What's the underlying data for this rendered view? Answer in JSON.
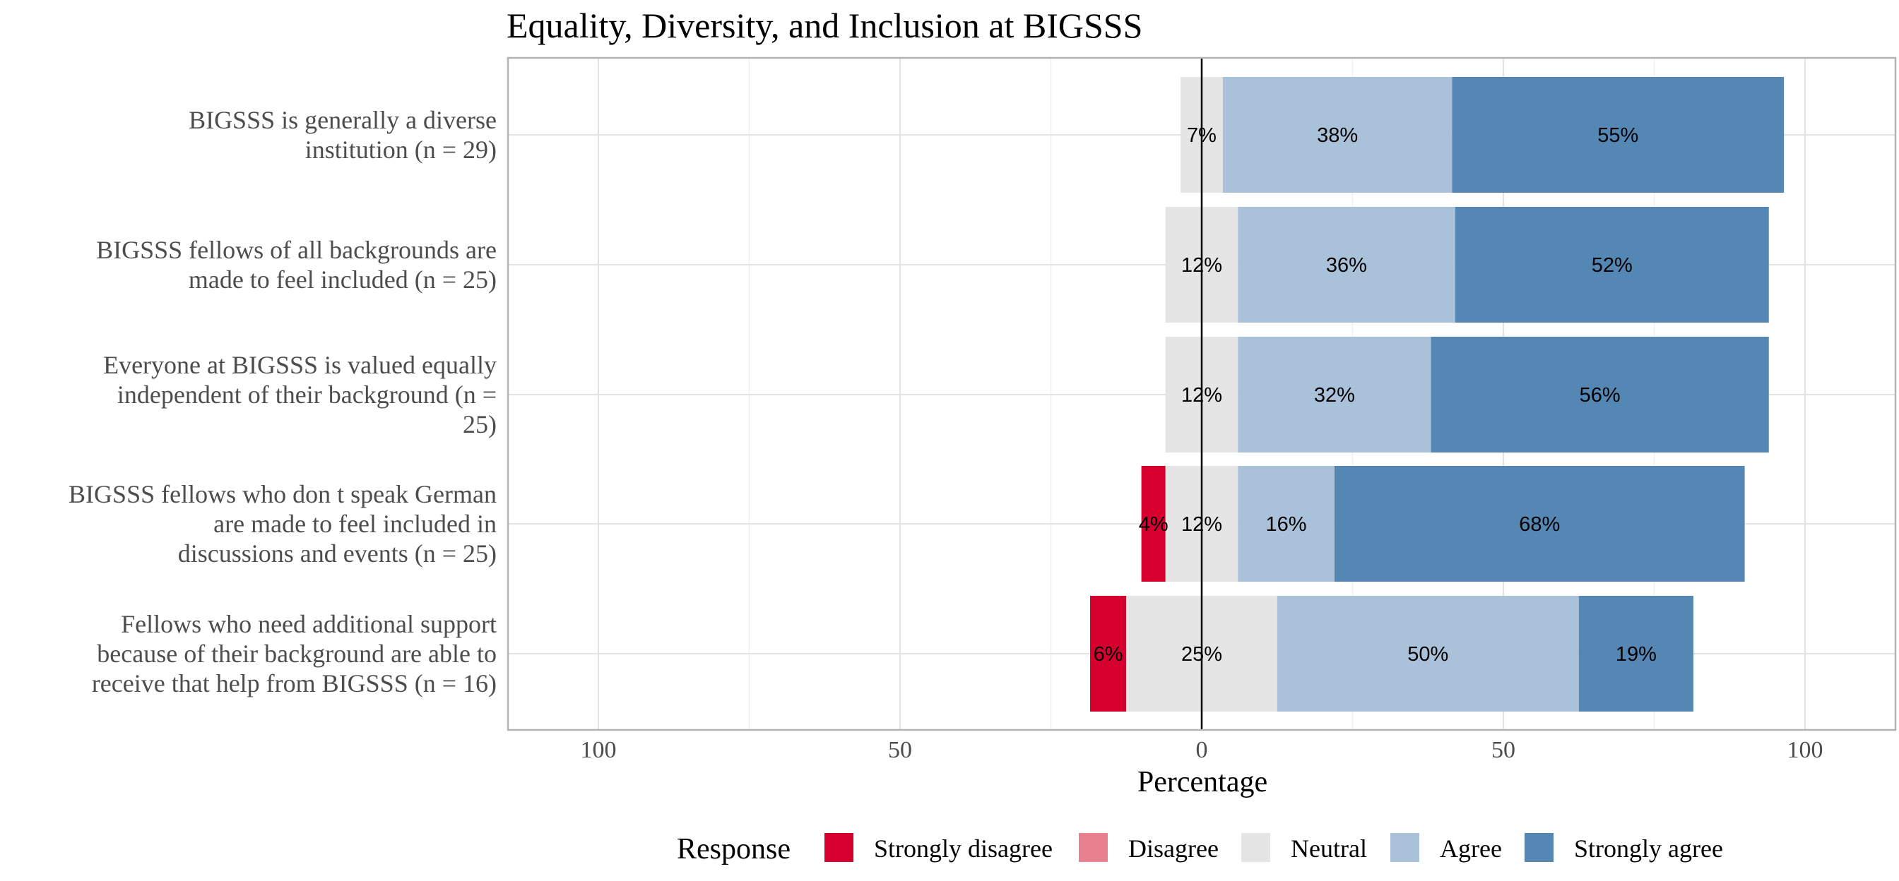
{
  "chart_data": {
    "type": "bar",
    "orientation": "horizontal",
    "stacked": "diverging",
    "title": "Equality, Diversity, and Inclusion at BIGSSS",
    "xlabel": "Percentage",
    "ylabel": "",
    "xlim": [
      -115,
      115
    ],
    "x_ticks": [
      -100,
      -50,
      0,
      50,
      100
    ],
    "x_tick_labels": [
      "100",
      "50",
      "0",
      "50",
      "100"
    ],
    "grid": true,
    "legend_position": "bottom",
    "legend_title": "Response",
    "categories": [
      "BIGSSS is generally a diverse institution (n = 29)",
      "BIGSSS fellows of all backgrounds are made to feel included (n = 25)",
      "Everyone at BIGSSS is valued equally independent of their background (n = 25)",
      "BIGSSS fellows who don t speak German are made to feel included in discussions and events (n = 25)",
      "Fellows who need additional support because of their background are able to receive that help from BIGSSS (n = 16)"
    ],
    "category_label_lines": [
      [
        "BIGSSS is generally a diverse",
        "institution (n = 29)"
      ],
      [
        "BIGSSS fellows of all backgrounds are",
        "made to feel included (n = 25)"
      ],
      [
        "Everyone at BIGSSS is valued equally",
        "independent of their background (n =",
        "25)"
      ],
      [
        "BIGSSS fellows who don t speak German",
        "are made to feel included in",
        "discussions and events (n = 25)"
      ],
      [
        "Fellows who need additional support",
        "because of their background are able to",
        "receive that help from BIGSSS (n = 16)"
      ]
    ],
    "series": [
      {
        "name": "Strongly disagree",
        "color": "#D6002F",
        "values": [
          0,
          0,
          0,
          4,
          6
        ]
      },
      {
        "name": "Disagree",
        "color": "#E8808F",
        "values": [
          0,
          0,
          0,
          0,
          0
        ]
      },
      {
        "name": "Neutral",
        "color": "#E5E5E5",
        "values": [
          7,
          12,
          12,
          12,
          25
        ]
      },
      {
        "name": "Agree",
        "color": "#AAC1DA",
        "values": [
          38,
          36,
          32,
          16,
          50
        ]
      },
      {
        "name": "Strongly agree",
        "color": "#5587B5",
        "values": [
          55,
          52,
          56,
          68,
          19
        ]
      }
    ],
    "data_labels": [
      [
        "",
        "",
        "7%",
        "38%",
        "55%"
      ],
      [
        "",
        "",
        "12%",
        "36%",
        "52%"
      ],
      [
        "",
        "",
        "12%",
        "32%",
        "56%"
      ],
      [
        "4%",
        "",
        "12%",
        "16%",
        "68%"
      ],
      [
        "6%",
        "",
        "25%",
        "50%",
        "19%"
      ]
    ]
  }
}
